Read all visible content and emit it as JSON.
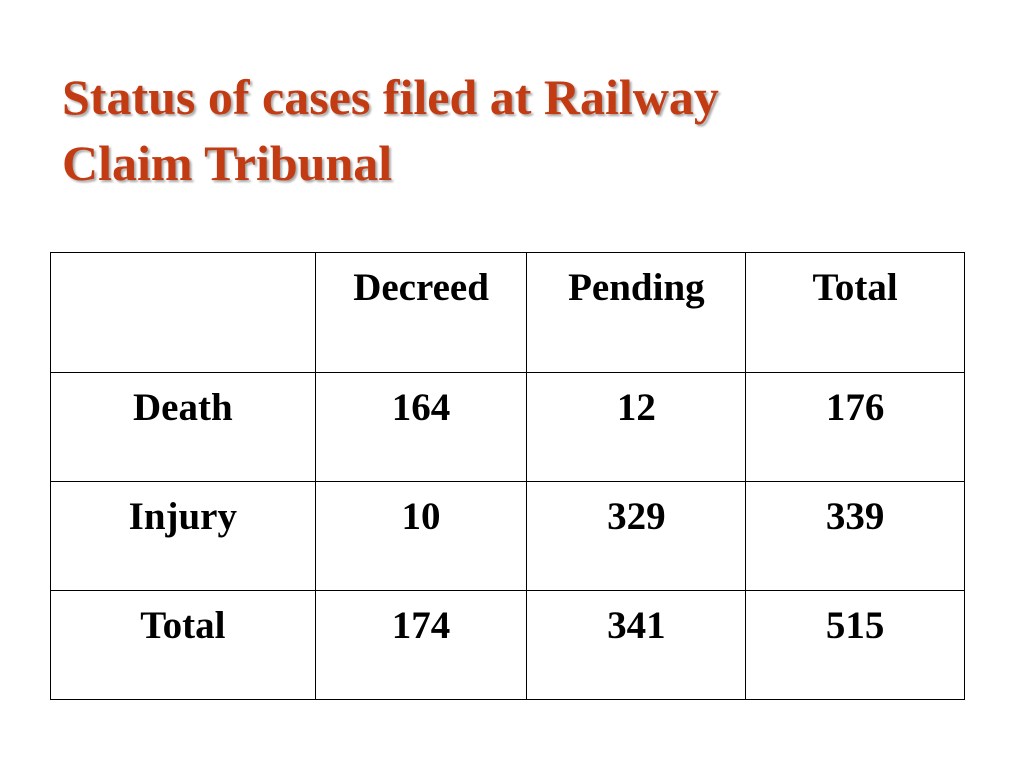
{
  "slide": {
    "title_line1": "Status of  cases filed at Railway",
    "title_line2": "Claim Tribunal",
    "title_color": "#c23b12"
  },
  "table": {
    "corner": "",
    "columns": [
      "Decreed",
      "Pending",
      "Total"
    ],
    "rows": [
      {
        "label": "Death",
        "values": [
          "164",
          "12",
          "176"
        ]
      },
      {
        "label": "Injury",
        "values": [
          "10",
          "329",
          "339"
        ]
      },
      {
        "label": "Total",
        "values": [
          "174",
          "341",
          "515"
        ]
      }
    ]
  }
}
